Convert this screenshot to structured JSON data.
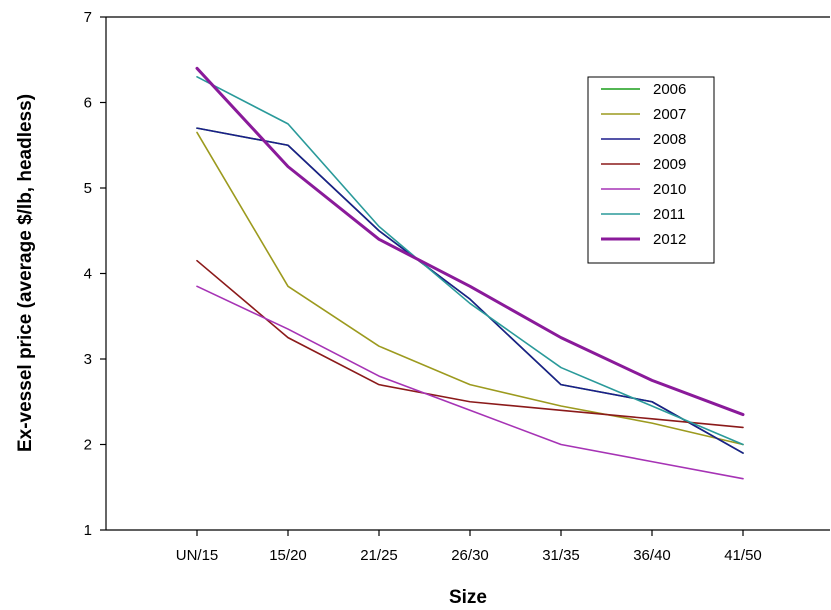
{
  "chart_data": {
    "type": "line",
    "xlabel": "Size",
    "ylabel": "Ex-vessel price (average $/lb, headless)",
    "categories": [
      "UN/15",
      "15/20",
      "21/25",
      "26/30",
      "31/35",
      "36/40",
      "41/50"
    ],
    "ylim": [
      1,
      7
    ],
    "yticks": [
      1,
      2,
      3,
      4,
      5,
      6,
      7
    ],
    "grid": false,
    "legend_position": "top-right",
    "series": [
      {
        "name": "2006",
        "color": "#1a9e1a",
        "width": 1.6,
        "values": [
          5.7,
          5.5,
          4.5,
          3.7,
          2.7,
          2.5,
          1.9
        ]
      },
      {
        "name": "2007",
        "color": "#9c9a1e",
        "width": 1.6,
        "values": [
          5.65,
          3.85,
          3.15,
          2.7,
          2.45,
          2.25,
          2.0
        ]
      },
      {
        "name": "2008",
        "color": "#1c1c8c",
        "width": 1.6,
        "values": [
          5.7,
          5.5,
          4.5,
          3.7,
          2.7,
          2.5,
          1.9
        ]
      },
      {
        "name": "2009",
        "color": "#8b1a1a",
        "width": 1.6,
        "values": [
          4.15,
          3.25,
          2.7,
          2.5,
          2.4,
          2.3,
          2.2
        ]
      },
      {
        "name": "2010",
        "color": "#a633b5",
        "width": 1.6,
        "values": [
          3.85,
          3.35,
          2.8,
          2.4,
          2.0,
          1.8,
          1.6
        ]
      },
      {
        "name": "2011",
        "color": "#2a9a9a",
        "width": 1.6,
        "values": [
          6.3,
          5.75,
          4.55,
          3.65,
          2.9,
          2.45,
          2.0
        ]
      },
      {
        "name": "2012",
        "color": "#8a1a9a",
        "width": 3.0,
        "values": [
          6.4,
          5.25,
          4.4,
          3.85,
          3.25,
          2.75,
          2.35
        ]
      }
    ]
  }
}
